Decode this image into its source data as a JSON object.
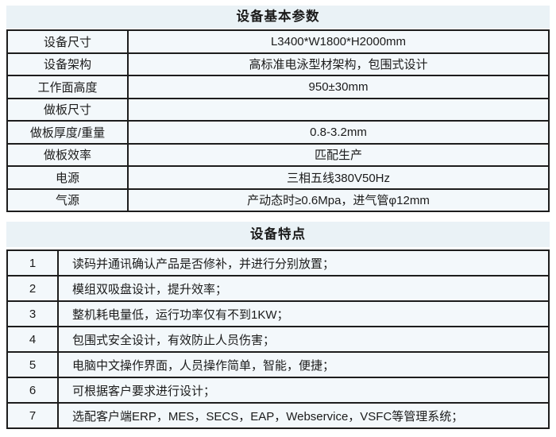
{
  "basic_params": {
    "title": "设备基本参数",
    "rows": [
      {
        "label": "设备尺寸",
        "value": "L3400*W1800*H2000mm"
      },
      {
        "label": "设备架构",
        "value": "高标准电泳型材架构，包围式设计"
      },
      {
        "label": "工作面高度",
        "value": "950±30mm"
      },
      {
        "label": "做板尺寸",
        "value": ""
      },
      {
        "label": "做板厚度/重量",
        "value": "0.8-3.2mm"
      },
      {
        "label": "做板效率",
        "value": "匹配生产"
      },
      {
        "label": "电源",
        "value": "三相五线380V50Hz"
      },
      {
        "label": "气源",
        "value": "产动态时≥0.6Mpa，进气管φ12mm"
      }
    ]
  },
  "features": {
    "title": "设备特点",
    "rows": [
      {
        "num": "1",
        "text": "读码并通讯确认产品是否修补，并进行分别放置；"
      },
      {
        "num": "2",
        "text": "模组双吸盘设计，提升效率；"
      },
      {
        "num": "3",
        "text": "整机耗电量低，运行功率仅有不到1KW；"
      },
      {
        "num": "4",
        "text": "包围式安全设计，有效防止人员伤害；"
      },
      {
        "num": "5",
        "text": "电脑中文操作界面，人员操作简单，智能，便捷；"
      },
      {
        "num": "6",
        "text": "可根据客户要求进行设计；"
      },
      {
        "num": "7",
        "text": "选配客户端ERP，MES，SECS，EAP，Webservice，VSFC等管理系统；"
      }
    ]
  },
  "colors": {
    "title_band_bg": "#eaf2f6",
    "cell_bg": "#f3f8fb",
    "border": "#1d1d1d",
    "text": "#1b1b1b"
  }
}
